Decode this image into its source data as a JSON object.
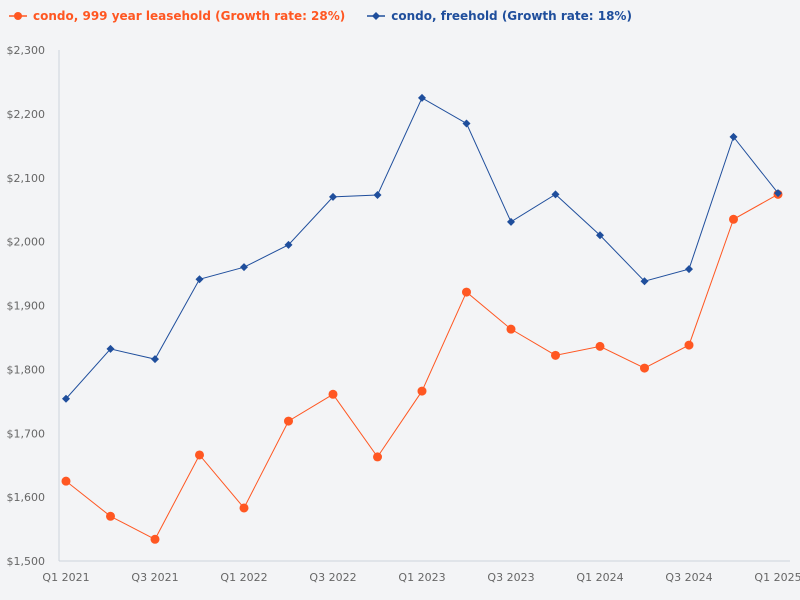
{
  "chart_data": {
    "type": "line",
    "title": "",
    "xlabel": "",
    "ylabel": "",
    "ylim": [
      1500,
      2300
    ],
    "yticks": [
      "$1,500",
      "$1,600",
      "$1,700",
      "$1,800",
      "$1,900",
      "$2,000",
      "$2,100",
      "$2,200",
      "$2,300"
    ],
    "ytick_values": [
      1500,
      1600,
      1700,
      1800,
      1900,
      2000,
      2100,
      2200,
      2300
    ],
    "categories": [
      "Q1 2021",
      "Q2 2021",
      "Q3 2021",
      "Q4 2021",
      "Q1 2022",
      "Q2 2022",
      "Q3 2022",
      "Q4 2022",
      "Q1 2023",
      "Q2 2023",
      "Q3 2023",
      "Q4 2023",
      "Q1 2024",
      "Q2 2024",
      "Q3 2024",
      "Q4 2024",
      "Q1 2025"
    ],
    "xtick_labels": [
      "Q1 2021",
      "",
      "Q3 2021",
      "",
      "Q1 2022",
      "",
      "Q3 2022",
      "",
      "Q1 2023",
      "",
      "Q3 2023",
      "",
      "Q1 2024",
      "",
      "Q3 2024",
      "",
      "Q1 2025"
    ],
    "grid": false,
    "legend_position": "top-left",
    "series": [
      {
        "name": "condo, 999 year leasehold (Growth rate: 28%)",
        "color": "#ff5722",
        "marker": "circle",
        "values": [
          1625,
          1570,
          1534,
          1666,
          1583,
          1719,
          1761,
          1663,
          1766,
          1921,
          1863,
          1822,
          1836,
          1802,
          1838,
          2035,
          2074
        ]
      },
      {
        "name": "condo, freehold (Growth rate: 18%)",
        "color": "#1f4e9c",
        "marker": "diamond",
        "values": [
          1754,
          1832,
          1816,
          1941,
          1960,
          1995,
          2070,
          2073,
          2225,
          2185,
          2031,
          2074,
          2010,
          1938,
          1957,
          2164,
          2076
        ]
      }
    ]
  }
}
